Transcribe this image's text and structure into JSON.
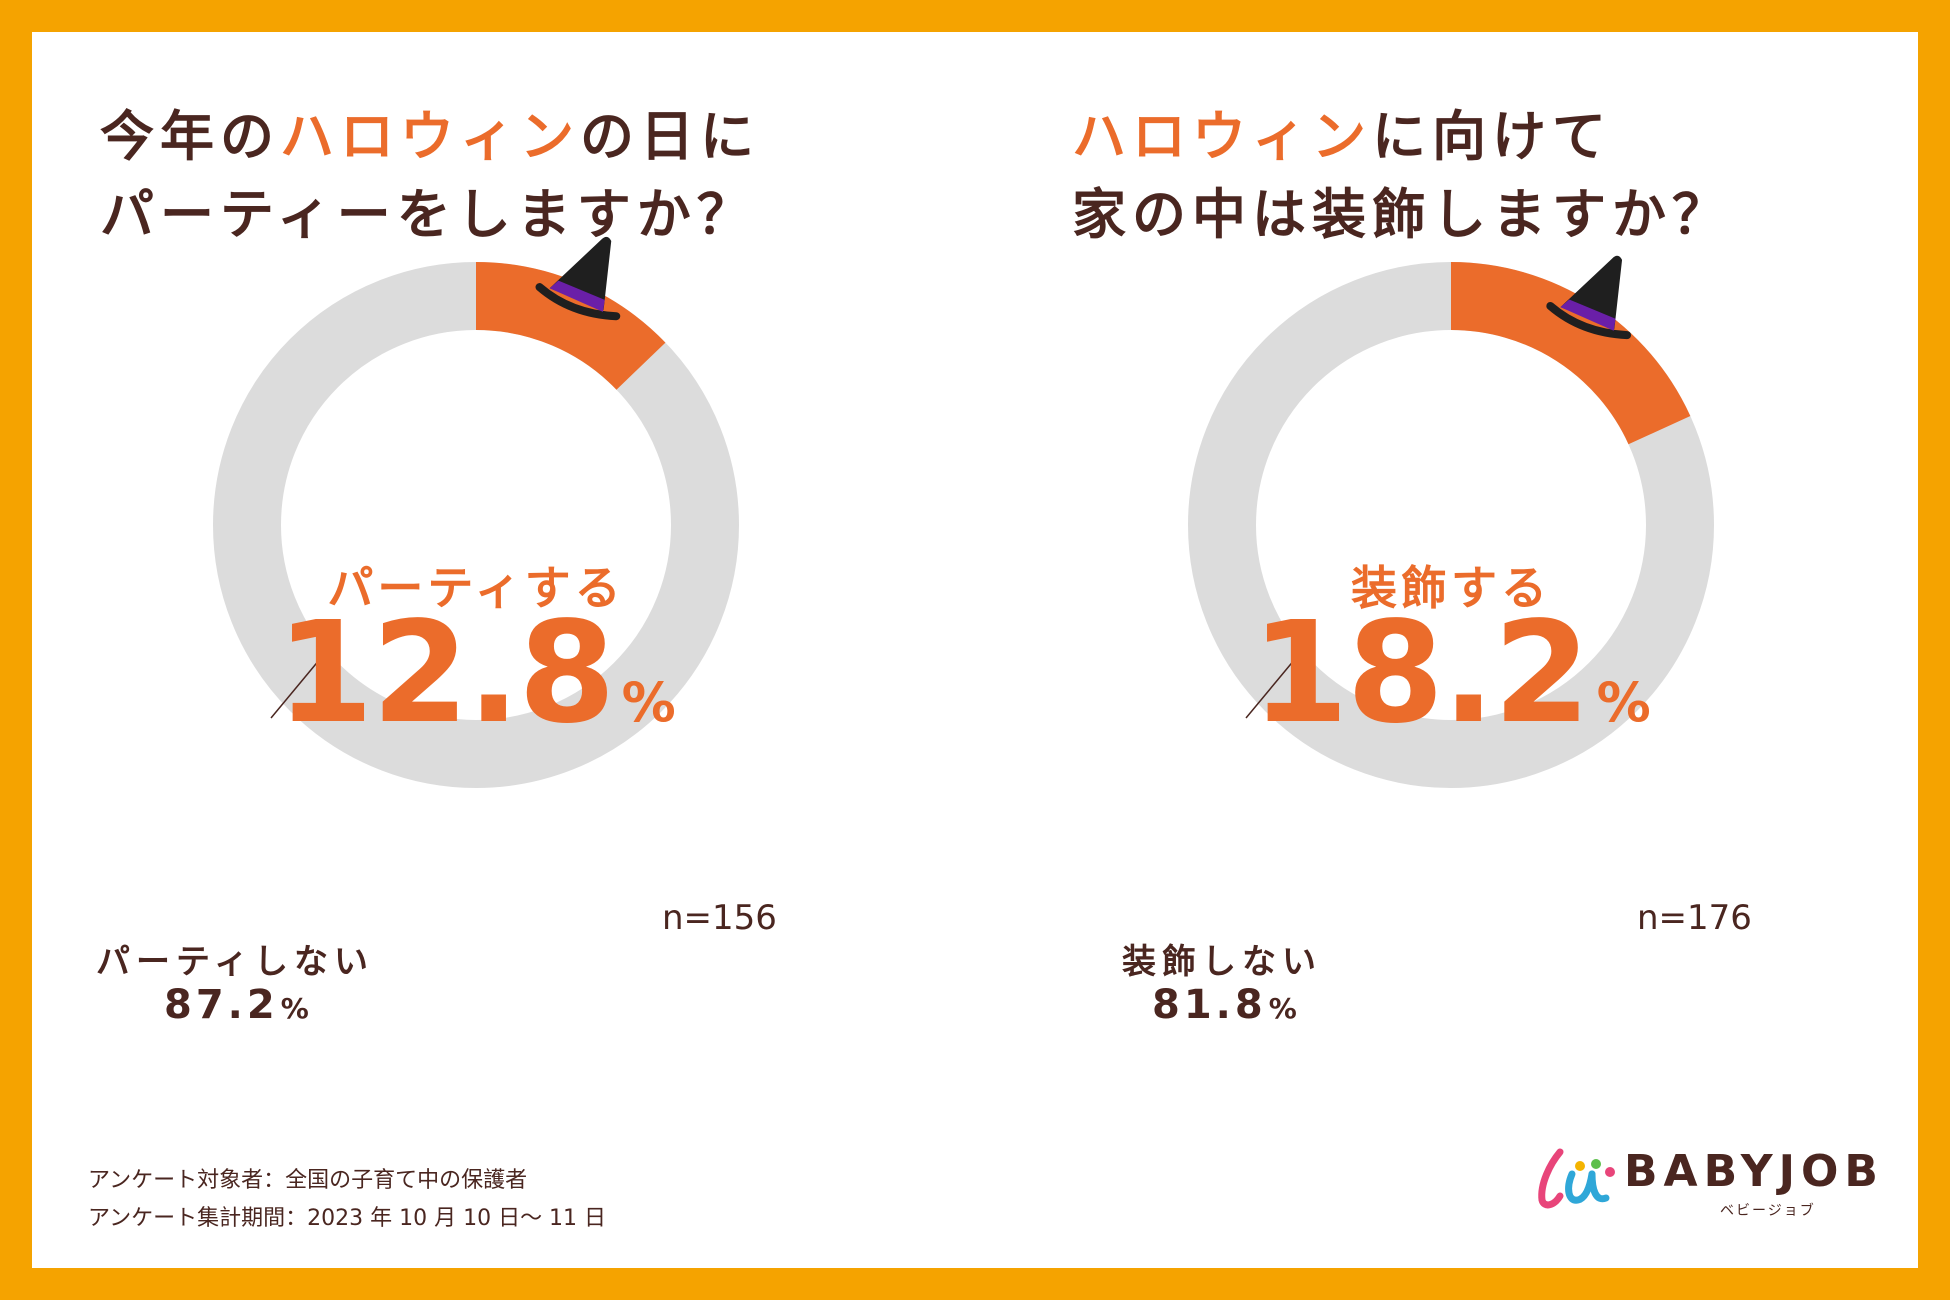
{
  "colors": {
    "frame": "#F5A300",
    "accent": "#EB6C2B",
    "track": "#DCDCDC",
    "text": "#4A2620",
    "hat": "#1F1F1F",
    "hat_band": "#6A1FA8"
  },
  "charts": [
    {
      "title_line1_pre": "今年の",
      "title_line1_accent": "ハロウィン",
      "title_line1_post": "の日に",
      "title_line2": "パーティーをしますか？",
      "center_label": "パーティする",
      "center_value": "12.8",
      "center_unit": "%",
      "other_label": "パーティしない",
      "other_value": "87.2",
      "other_unit": "%",
      "n": "n=156"
    },
    {
      "title_line1_accent": "ハロウィン",
      "title_line1_post": "に向けて",
      "title_line2": "家の中は装飾しますか？",
      "center_label": "装飾する",
      "center_value": "18.2",
      "center_unit": "%",
      "other_label": "装飾しない",
      "other_value": "81.8",
      "other_unit": "%",
      "n": "n=176"
    }
  ],
  "chart_data": [
    {
      "type": "pie",
      "title": "今年のハロウィンの日にパーティーをしますか？",
      "categories": [
        "パーティする",
        "パーティしない"
      ],
      "values": [
        12.8,
        87.2
      ],
      "unit": "%",
      "n": 156
    },
    {
      "type": "pie",
      "title": "ハロウィンに向けて家の中は装飾しますか？",
      "categories": [
        "装飾する",
        "装飾しない"
      ],
      "values": [
        18.2,
        81.8
      ],
      "unit": "%",
      "n": 176
    }
  ],
  "footer": {
    "line1": "アンケート対象者：全国の子育て中の保護者",
    "line2": "アンケート集計期間：2023 年 10 月 10 日～ 11 日"
  },
  "brand": {
    "name": "BABYJOB",
    "sub": "ベビージョブ"
  }
}
